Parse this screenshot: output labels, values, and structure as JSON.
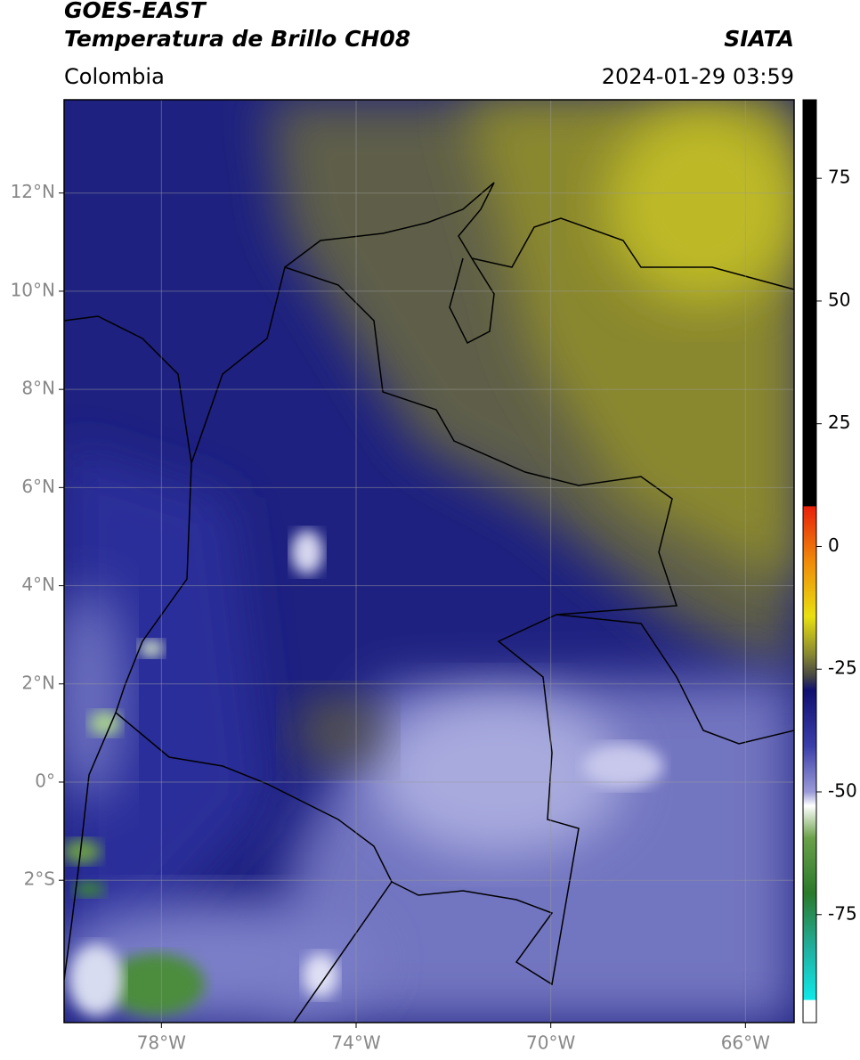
{
  "header": {
    "title": "GOES-EAST",
    "subtitle": "Temperatura de Brillo CH08",
    "source": "SIATA",
    "region": "Colombia",
    "datetime": "2024-01-29 03:59"
  },
  "map": {
    "latlim": [
      -4.9,
      13.9
    ],
    "lonlim": [
      -80,
      -65
    ],
    "lat_ticks": [
      {
        "value": 12,
        "label": "12°N"
      },
      {
        "value": 10,
        "label": "10°N"
      },
      {
        "value": 8,
        "label": "8°N"
      },
      {
        "value": 6,
        "label": "6°N"
      },
      {
        "value": 4,
        "label": "4°N"
      },
      {
        "value": 2,
        "label": "2°N"
      },
      {
        "value": 0,
        "label": "0°"
      },
      {
        "value": -2,
        "label": "2°S"
      }
    ],
    "lon_ticks": [
      {
        "value": -78,
        "label": "78°W"
      },
      {
        "value": -74,
        "label": "74°W"
      },
      {
        "value": -70,
        "label": "70°W"
      },
      {
        "value": -66,
        "label": "66°W"
      }
    ]
  },
  "colorbar": {
    "lim": [
      -97,
      91
    ],
    "ticks": [
      75,
      50,
      25,
      0,
      -25,
      -50,
      -75
    ]
  }
}
